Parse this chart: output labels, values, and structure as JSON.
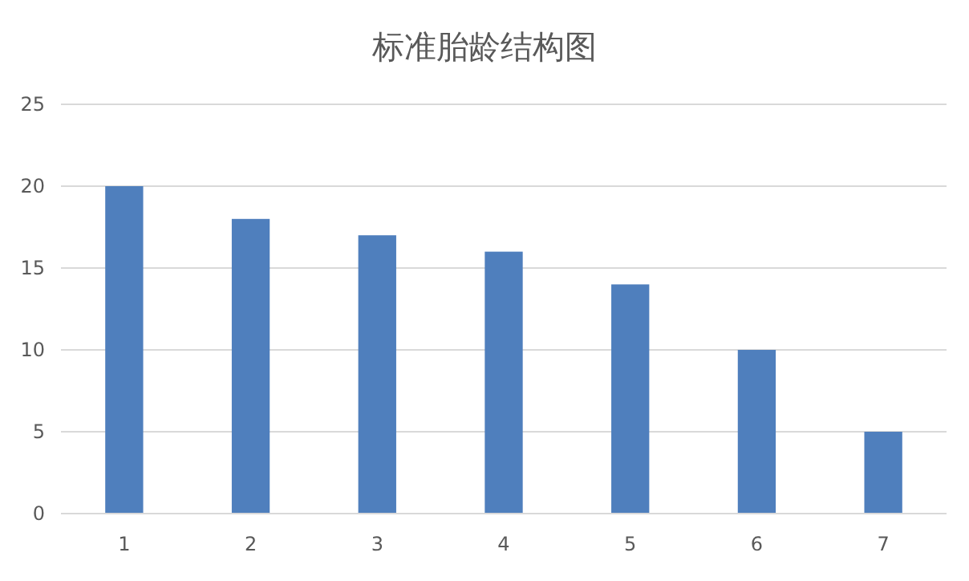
{
  "chart_data": {
    "type": "bar",
    "title": "标准胎龄结构图",
    "categories": [
      "1",
      "2",
      "3",
      "4",
      "5",
      "6",
      "7"
    ],
    "values": [
      20,
      18,
      17,
      16,
      14,
      10,
      5
    ],
    "color": "#4f7fbd",
    "ylim": [
      0,
      25
    ],
    "yticks": [
      0,
      5,
      10,
      15,
      20,
      25
    ],
    "grid": "y"
  }
}
